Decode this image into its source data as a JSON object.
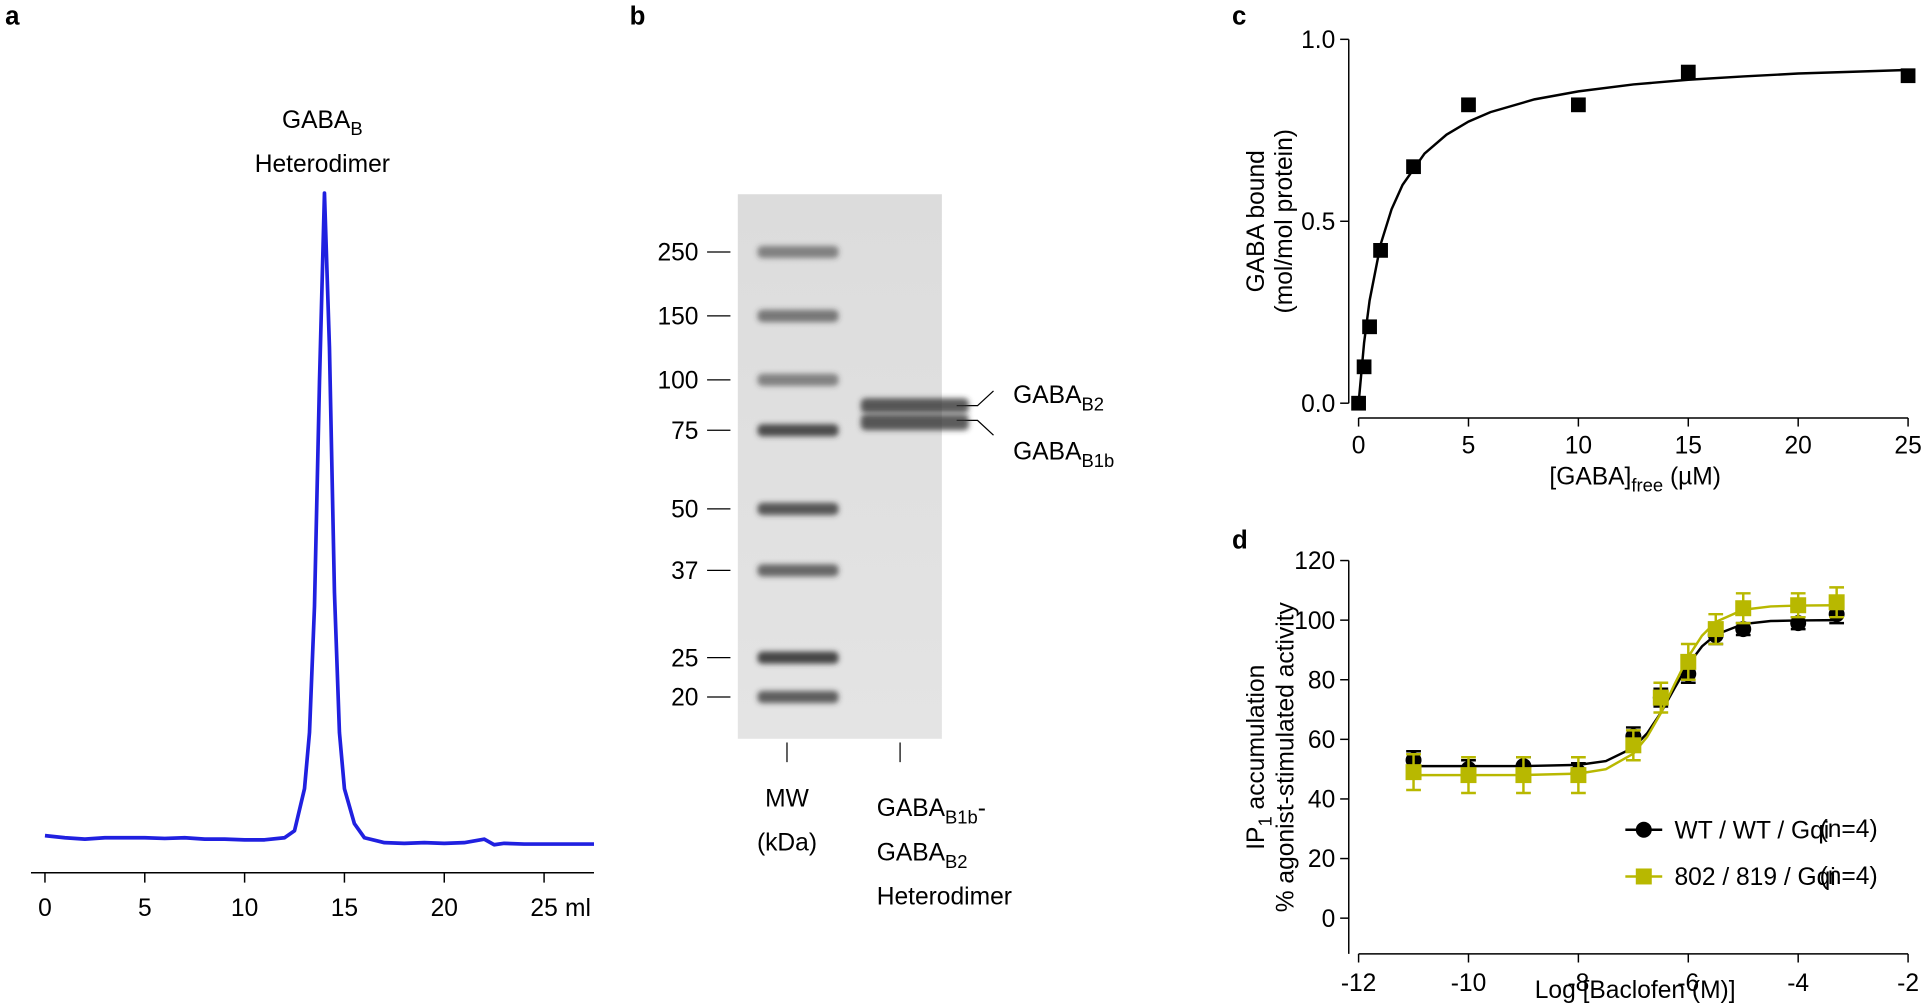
{
  "chart_data": [
    {
      "type": "line",
      "panel": "a",
      "annotation": [
        [
          {
            "text": "GABA"
          },
          {
            "text": "B",
            "sub": true
          }
        ],
        [
          {
            "text": "Heterodimer"
          }
        ]
      ],
      "xlabel": "ml",
      "color": "#2020e0",
      "x": [
        0,
        1,
        2,
        3,
        4,
        5,
        6,
        7,
        8,
        9,
        10,
        11,
        12,
        12.5,
        13,
        13.25,
        13.5,
        13.75,
        14,
        14.25,
        14.5,
        14.75,
        15,
        15.5,
        16,
        17,
        18,
        19,
        20,
        21,
        22,
        22.5,
        23,
        24,
        25,
        26,
        27,
        27.5
      ],
      "values": [
        0.053,
        0.05,
        0.048,
        0.05,
        0.05,
        0.05,
        0.049,
        0.05,
        0.048,
        0.048,
        0.047,
        0.047,
        0.05,
        0.06,
        0.12,
        0.2,
        0.38,
        0.7,
        0.97,
        0.75,
        0.4,
        0.2,
        0.12,
        0.07,
        0.05,
        0.043,
        0.042,
        0.043,
        0.042,
        0.043,
        0.048,
        0.04,
        0.042,
        0.041,
        0.041,
        0.041,
        0.041,
        0.041
      ],
      "xlim": [
        -0.7,
        27.5
      ],
      "ylim": [
        0,
        1
      ],
      "xticks": [
        0,
        5,
        10,
        15,
        20,
        25
      ]
    },
    {
      "type": "gel",
      "panel": "b",
      "ladder": [
        250,
        150,
        100,
        75,
        50,
        37,
        25,
        20
      ],
      "lanes": [
        [
          [
            {
              "text": "MW"
            }
          ],
          [
            {
              "text": "(kDa)"
            }
          ]
        ],
        [
          [
            {
              "text": "GABA"
            },
            {
              "text": "B1b",
              "sub": true
            },
            {
              "text": "-"
            }
          ],
          [
            {
              "text": "GABA"
            },
            {
              "text": "B2",
              "sub": true
            }
          ],
          [
            {
              "text": "Heterodimer"
            }
          ]
        ]
      ],
      "bands": [
        [
          {
            "text": "GABA"
          },
          {
            "text": "B2",
            "sub": true
          }
        ],
        [
          {
            "text": "GABA"
          },
          {
            "text": "B1b",
            "sub": true
          }
        ]
      ]
    },
    {
      "type": "scatter",
      "panel": "c",
      "ylabel": [
        "GABA bound",
        "(mol/mol protein)"
      ],
      "xlabel": [
        {
          "text": "[GABA]"
        },
        {
          "text": "free",
          "sub": true
        },
        {
          "text": " (µM)"
        }
      ],
      "series": [
        {
          "color": "#000000",
          "x": [
            0,
            0.25,
            0.5,
            1,
            2.5,
            5,
            10,
            15,
            25
          ],
          "values": [
            0,
            0.1,
            0.21,
            0.42,
            0.65,
            0.82,
            0.82,
            0.91,
            0.9
          ],
          "fit_x": [
            0,
            0.25,
            0.5,
            1,
            1.5,
            2,
            3,
            4,
            5,
            6,
            8,
            10,
            12.5,
            15,
            17.5,
            20,
            22.5,
            25
          ],
          "fit": [
            0,
            0.166,
            0.282,
            0.436,
            0.533,
            0.6,
            0.686,
            0.738,
            0.774,
            0.8,
            0.835,
            0.857,
            0.876,
            0.889,
            0.898,
            0.906,
            0.911,
            0.916
          ]
        }
      ],
      "xlim": [
        0,
        25
      ],
      "ylim": [
        0,
        1
      ],
      "xticks": [
        0,
        5,
        10,
        15,
        20,
        25
      ],
      "yticks": [
        {
          "value": 0,
          "label": "0.0"
        },
        {
          "value": 0.5,
          "label": "0.5"
        },
        {
          "value": 1,
          "label": "1.0"
        }
      ]
    },
    {
      "type": "dose-response",
      "panel": "d",
      "ylabel": [
        [
          {
            "text": "IP"
          },
          {
            "text": "1",
            "sub": true
          },
          {
            "text": " accumulation"
          }
        ],
        [
          {
            "text": "% agonist-stimulated activity"
          }
        ]
      ],
      "xlabel": "Log [Baclofen (M)]",
      "series": [
        {
          "name": "WT / WT / Gqi",
          "n_label": "(n=4)",
          "color": "#000000",
          "marker": "circle",
          "x": [
            -11,
            -10,
            -9,
            -8,
            -7,
            -6.5,
            -6,
            -5.5,
            -5,
            -4,
            -3.3
          ],
          "values": [
            53,
            50,
            51,
            49,
            61,
            74,
            82,
            95,
            97,
            99,
            102
          ],
          "errors": [
            3,
            3,
            3,
            3,
            3,
            3,
            3,
            3,
            2,
            2,
            3
          ],
          "fit_x": [
            -11,
            -9,
            -8,
            -7.5,
            -7,
            -6.75,
            -6.5,
            -6.25,
            -6,
            -5.75,
            -5.5,
            -5,
            -4.5,
            -4,
            -3.3
          ],
          "fit": [
            51,
            51.03,
            51.44,
            52.7,
            57.2,
            62,
            68.9,
            77.2,
            85.1,
            91.2,
            95.1,
            98.7,
            99.7,
            99.9,
            100
          ]
        },
        {
          "name": "802 / 819 / Gqi",
          "n_label": "(n=4)",
          "color": "#b8b800",
          "marker": "square",
          "x": [
            -11,
            -10,
            -9,
            -8,
            -7,
            -6.5,
            -6,
            -5.5,
            -5,
            -4,
            -3.3
          ],
          "values": [
            49,
            48,
            48,
            48,
            58,
            74,
            86,
            97,
            104,
            105,
            106
          ],
          "errors": [
            6,
            6,
            6,
            6,
            5,
            5,
            6,
            5,
            5,
            4,
            5
          ],
          "fit_x": [
            -11,
            -9,
            -8,
            -7.5,
            -7,
            -6.75,
            -6.5,
            -6.25,
            -6,
            -5.75,
            -5.5,
            -5,
            -4.5,
            -4,
            -3.3
          ],
          "fit": [
            48,
            48.03,
            48.5,
            50,
            55.2,
            60.8,
            68.8,
            78.5,
            87.7,
            94.8,
            99.4,
            103.5,
            104.6,
            104.9,
            105
          ]
        }
      ],
      "xlim": [
        -12,
        -2
      ],
      "ylim": [
        -12,
        120
      ],
      "xticks": [
        -12,
        -10,
        -8,
        -6,
        -4,
        -2
      ],
      "yticks": [
        0,
        20,
        40,
        60,
        80,
        100,
        120
      ],
      "legend": "lower right"
    }
  ]
}
